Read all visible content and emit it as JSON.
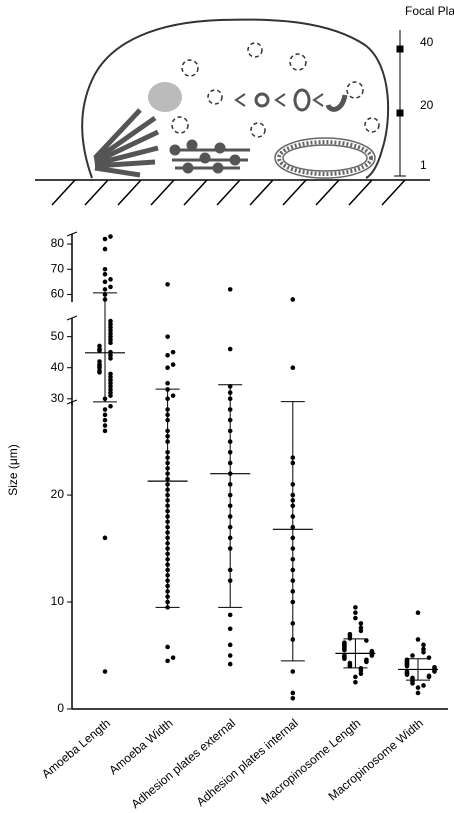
{
  "diagram": {
    "focal_planes": {
      "title": "Focal Planes",
      "labels": [
        "40",
        "20",
        "1"
      ]
    }
  },
  "chart_data": {
    "type": "dot",
    "y_label": "Size (μm)",
    "categories": [
      "Amoeba Length",
      "Amoeba Width",
      "Adhesion plates external",
      "Adhesion plates internal",
      "Macropinosome Length",
      "Macropinosome Width"
    ],
    "groups": [
      {
        "values": [
          3.5,
          16,
          26,
          26.5,
          27,
          27.5,
          28,
          28.3,
          30,
          31,
          32,
          33,
          34,
          35,
          36,
          37,
          38,
          38.5,
          39,
          40,
          40.5,
          41,
          42,
          43,
          44,
          45,
          45.5,
          46,
          47,
          48,
          49,
          50,
          51,
          52,
          53,
          54,
          55,
          58,
          60,
          62,
          63,
          65,
          66,
          68,
          70,
          78,
          82,
          83
        ]
      },
      {
        "values": [
          4.5,
          4.8,
          5.8,
          9.5,
          10,
          10.5,
          11,
          11.5,
          12,
          12.5,
          13,
          13.5,
          14,
          14.5,
          15,
          15.5,
          16,
          16.5,
          17,
          17.5,
          18,
          18.5,
          19,
          19.5,
          20,
          20.5,
          21,
          21.5,
          22,
          22.5,
          23,
          23.5,
          24,
          25,
          25.5,
          26,
          27,
          27.5,
          28,
          30,
          31,
          33,
          35,
          40,
          41,
          44,
          45,
          50,
          64
        ]
      },
      {
        "values": [
          4.2,
          5,
          6,
          7.5,
          8.8,
          12,
          13,
          15,
          16,
          17,
          18,
          19,
          20,
          21,
          22,
          23,
          24,
          25,
          26,
          27,
          28,
          30,
          32,
          34,
          46,
          62
        ]
      },
      {
        "values": [
          1,
          1.5,
          3.5,
          6.5,
          8,
          10,
          11,
          12,
          13,
          14,
          15,
          16,
          17,
          18,
          19,
          19.5,
          20,
          21,
          23,
          23.5,
          40,
          58
        ]
      },
      {
        "values": [
          2.5,
          3,
          3.3,
          3.6,
          3.8,
          4,
          4.1,
          4.3,
          4.4,
          4.5,
          4.6,
          4.7,
          4.8,
          4.9,
          5,
          5,
          5.1,
          5.2,
          5.3,
          5.4,
          5.5,
          5.6,
          5.7,
          5.8,
          5.9,
          6,
          6.1,
          6.2,
          6.4,
          6.6,
          6.8,
          7,
          7.3,
          7.6,
          8,
          8.5,
          9,
          9.5
        ]
      },
      {
        "values": [
          1.5,
          2,
          2.2,
          2.4,
          2.6,
          2.8,
          2.9,
          3,
          3.1,
          3.2,
          3.3,
          3.4,
          3.5,
          3.5,
          3.6,
          3.7,
          3.8,
          3.9,
          4,
          4.1,
          4.2,
          4.3,
          4.4,
          4.5,
          4.6,
          4.8,
          5,
          5.3,
          5.6,
          6,
          6.5,
          9
        ]
      }
    ],
    "means": [
      44.8,
      21.3,
      22,
      16.8,
      5.2,
      3.7
    ],
    "sds": [
      15.8,
      11.8,
      12.5,
      12.3,
      1.35,
      1.0
    ],
    "ylim": [
      0,
      84
    ],
    "y_segments": [
      {
        "ylim": [
          0,
          28.7
        ]
      },
      {
        "ylim": [
          28,
          56
        ]
      },
      {
        "ylim": [
          57,
          84
        ]
      }
    ],
    "yticks": [
      0,
      10,
      20,
      30,
      40,
      50,
      60,
      70,
      80
    ],
    "color": "#000000"
  }
}
